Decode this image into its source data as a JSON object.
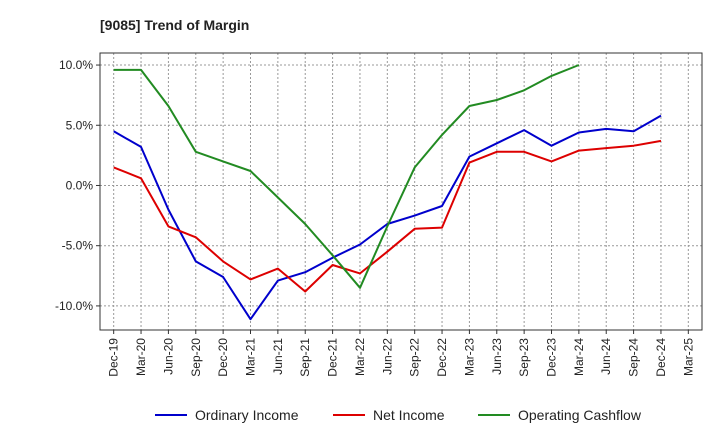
{
  "chart_data": {
    "type": "line",
    "title": "[9085]  Trend of Margin",
    "xlabel": "",
    "ylabel": "",
    "categories": [
      "Dec-19",
      "Mar-20",
      "Jun-20",
      "Sep-20",
      "Dec-20",
      "Mar-21",
      "Jun-21",
      "Sep-21",
      "Dec-21",
      "Mar-22",
      "Jun-22",
      "Sep-22",
      "Dec-22",
      "Mar-23",
      "Jun-23",
      "Sep-23",
      "Dec-23",
      "Mar-24",
      "Jun-24",
      "Sep-24",
      "Dec-24",
      "Mar-25"
    ],
    "ylim": [
      -12,
      11
    ],
    "y_ticks": [
      10,
      5,
      0,
      -5,
      -10
    ],
    "y_tick_labels": [
      "10.0%",
      "5.0%",
      "0.0%",
      "-5.0%",
      "-10.0%"
    ],
    "grid": true,
    "legend_position": "bottom",
    "series": [
      {
        "name": "Ordinary Income",
        "color": "#0000cc",
        "values": [
          4.5,
          3.2,
          -2.0,
          -6.3,
          -7.6,
          -11.1,
          -7.9,
          -7.2,
          -6.0,
          -4.9,
          -3.2,
          -2.5,
          -1.7,
          2.4,
          3.5,
          4.6,
          3.3,
          4.4,
          4.7,
          4.5,
          5.8,
          null
        ]
      },
      {
        "name": "Net Income",
        "color": "#dd0000",
        "values": [
          1.5,
          0.6,
          -3.4,
          -4.3,
          -6.3,
          -7.8,
          -6.9,
          -8.8,
          -6.6,
          -7.3,
          -5.5,
          -3.6,
          -3.5,
          1.9,
          2.8,
          2.8,
          2.0,
          2.9,
          3.1,
          3.3,
          3.7,
          null
        ]
      },
      {
        "name": "Operating Cashflow",
        "color": "#228b22",
        "values": [
          9.6,
          9.6,
          6.6,
          2.8,
          2.0,
          1.2,
          -1.0,
          -3.2,
          -5.8,
          -8.5,
          -3.4,
          1.5,
          4.2,
          6.6,
          7.1,
          7.9,
          9.1,
          10.0,
          null,
          null,
          null,
          null
        ]
      }
    ]
  }
}
